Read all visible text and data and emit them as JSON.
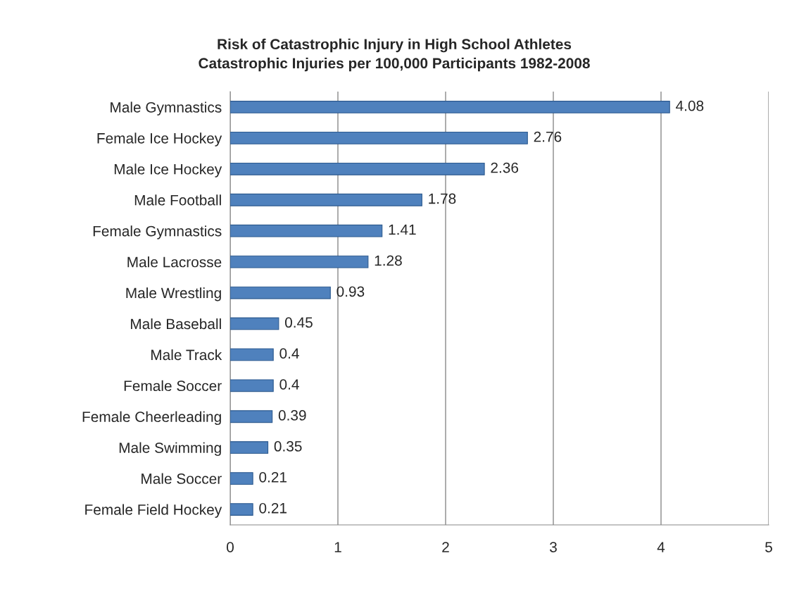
{
  "chart_data": {
    "type": "bar",
    "orientation": "horizontal",
    "title": "Risk of Catastrophic Injury in High School Athletes\nCatastrophic Injuries per 100,000 Participants 1982-2008",
    "categories": [
      "Male Gymnastics",
      "Female Ice Hockey",
      "Male Ice Hockey",
      "Male Football",
      "Female Gymnastics",
      "Male Lacrosse",
      "Male Wrestling",
      "Male Baseball",
      "Male Track",
      "Female Soccer",
      "Female Cheerleading",
      "Male Swimming",
      "Male Soccer",
      "Female Field Hockey"
    ],
    "values": [
      4.08,
      2.76,
      2.36,
      1.78,
      1.41,
      1.28,
      0.93,
      0.45,
      0.4,
      0.4,
      0.39,
      0.35,
      0.21,
      0.21
    ],
    "color": "#4f81bd",
    "xlim": [
      0,
      5
    ],
    "xticks": [
      0,
      1,
      2,
      3,
      4,
      5
    ],
    "grid": "x",
    "data_labels": true
  }
}
